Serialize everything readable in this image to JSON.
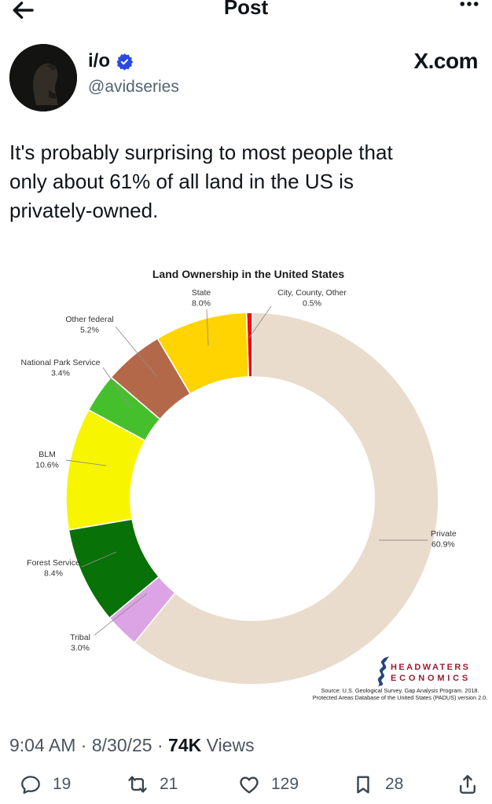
{
  "header": {
    "title": "Post"
  },
  "post": {
    "display_name": "i/o",
    "handle": "@avidseries",
    "verified": true,
    "watermark": "X.com",
    "body_lines": [
      "It's probably surprising to most people that",
      "only about 61% of all land in the US is",
      "privately-owned."
    ]
  },
  "timestamp": {
    "time": "9:04 AM",
    "separator": "·",
    "date": "8/30/25",
    "views_count": "74K",
    "views_label": "Views"
  },
  "actions": {
    "reply_count": "19",
    "repost_count": "21",
    "like_count": "129",
    "bookmark_count": "28"
  },
  "icons": {
    "back": "arrow-left-icon",
    "more": "ellipsis-icon",
    "verified": "verified-badge-icon",
    "reply": "reply-bubble-icon",
    "repost": "repost-icon",
    "like": "heart-icon",
    "bookmark": "bookmark-icon",
    "share": "share-icon"
  },
  "colors": {
    "text": "#0f1419",
    "secondary": "#536471",
    "badge_blue": "#2b48e0",
    "logo_red": "#9c1b31",
    "logo_blue": "#27457e"
  },
  "chart_data": {
    "type": "pie",
    "subtype": "donut",
    "title": "Land Ownership in the United States",
    "start_angle_deg": 90,
    "direction": "counterclockwise",
    "inner_radius_ratio": 0.654,
    "segments": [
      {
        "name": "City, County, Other",
        "value": 0.5,
        "label": "0.5%",
        "color": "#ee0d0d"
      },
      {
        "name": "State",
        "value": 8.0,
        "label": "8.0%",
        "color": "#ffd400"
      },
      {
        "name": "Other federal",
        "value": 5.2,
        "label": "5.2%",
        "color": "#b3684a"
      },
      {
        "name": "National Park Service",
        "value": 3.4,
        "label": "3.4%",
        "color": "#45c02c"
      },
      {
        "name": "BLM",
        "value": 10.6,
        "label": "10.6%",
        "color": "#f7f500"
      },
      {
        "name": "Forest Service",
        "value": 8.4,
        "label": "8.4%",
        "color": "#087108"
      },
      {
        "name": "Tribal",
        "value": 3.0,
        "label": "3.0%",
        "color": "#dca4e4"
      },
      {
        "name": "Private",
        "value": 60.9,
        "label": "60.9%",
        "color": "#eadccd"
      }
    ],
    "attribution": {
      "logo_line1": "HEADWATERS",
      "logo_line2": "ECONOMICS",
      "source_line1": "Source: U.S. Geological Survey. Gap Analysis Program. 2018.",
      "source_line2": "Protected Areas Database of the United States (PADUS) version 2.0."
    }
  }
}
